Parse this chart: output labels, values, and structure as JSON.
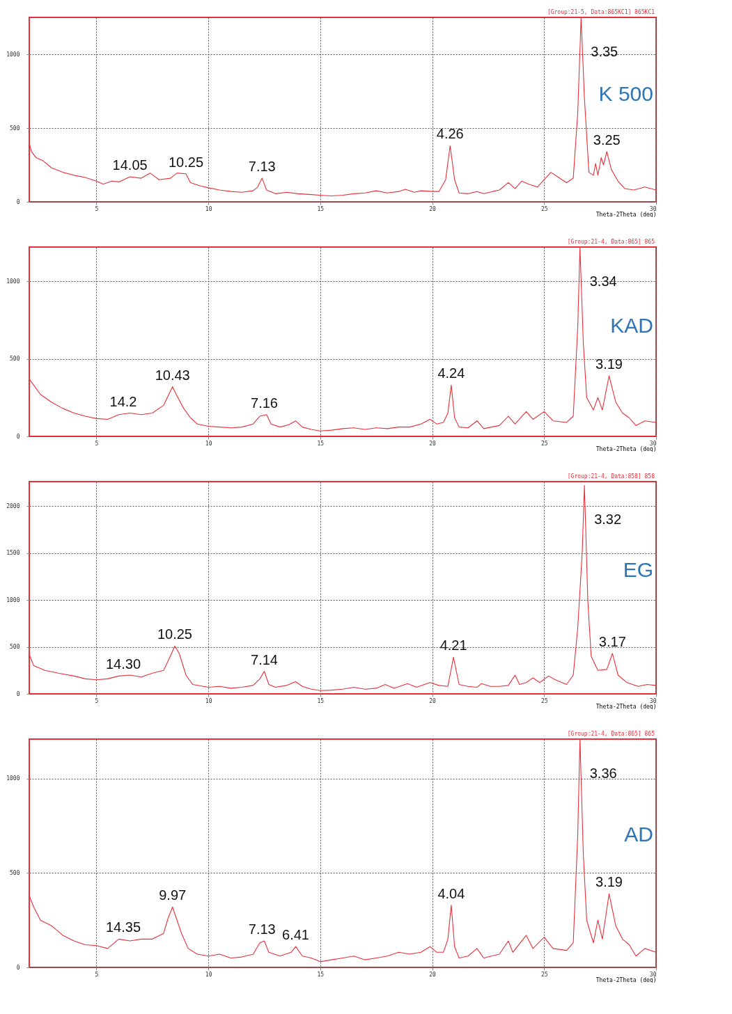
{
  "chart_data": [
    {
      "type": "line",
      "title": "K 500",
      "subtitle": "[Group:21-5, Data:865KC1] 865KC1",
      "xlabel": "Theta-2Theta (deg)",
      "xlim": [
        2,
        30
      ],
      "ylim": [
        0,
        1250
      ],
      "xticks": [
        5,
        10,
        15,
        20,
        25,
        30
      ],
      "yticks": [
        0,
        500,
        1000
      ],
      "grid": true,
      "line_style": "solid",
      "series": [
        {
          "color": "#e8303a",
          "x": [
            2,
            2.1,
            2.3,
            2.6,
            3,
            3.5,
            4,
            4.5,
            5,
            5.3,
            5.7,
            6,
            6.5,
            7,
            7.4,
            7.8,
            8.3,
            8.6,
            9,
            9.2,
            9.6,
            10,
            10.5,
            11,
            11.5,
            12,
            12.2,
            12.4,
            12.6,
            13,
            13.5,
            14,
            14.5,
            15,
            15.5,
            16,
            16.5,
            17,
            17.5,
            18,
            18.5,
            18.8,
            19.2,
            19.5,
            20,
            20.3,
            20.6,
            20.8,
            21,
            21.2,
            21.6,
            22,
            22.3,
            22.7,
            23,
            23.4,
            23.7,
            24,
            24.3,
            24.7,
            25,
            25.3,
            25.6,
            26,
            26.3,
            26.5,
            26.65,
            26.8,
            27,
            27.2,
            27.3,
            27.4,
            27.55,
            27.65,
            27.8,
            28,
            28.3,
            28.6,
            29,
            29.5,
            30
          ],
          "values": [
            400,
            340,
            300,
            280,
            230,
            200,
            180,
            165,
            140,
            120,
            140,
            135,
            170,
            160,
            195,
            150,
            160,
            195,
            190,
            130,
            110,
            95,
            80,
            70,
            65,
            75,
            100,
            160,
            80,
            55,
            65,
            55,
            50,
            45,
            40,
            45,
            55,
            60,
            75,
            60,
            70,
            85,
            65,
            75,
            70,
            70,
            150,
            380,
            150,
            60,
            55,
            70,
            55,
            70,
            80,
            130,
            90,
            140,
            120,
            100,
            150,
            200,
            170,
            130,
            160,
            600,
            1250,
            700,
            200,
            180,
            260,
            180,
            300,
            250,
            340,
            220,
            140,
            90,
            80,
            100,
            80
          ]
        }
      ],
      "annotations": [
        {
          "text": "14.05",
          "x": 6.5,
          "y": 170
        },
        {
          "text": "10.25",
          "x": 9,
          "y": 190
        },
        {
          "text": "7.13",
          "x": 12.4,
          "y": 160
        },
        {
          "text": "4.26",
          "x": 20.8,
          "y": 380
        },
        {
          "text": "3.35",
          "x": 26.65,
          "y": 1250
        },
        {
          "text": "3.25",
          "x": 27.8,
          "y": 340
        }
      ]
    },
    {
      "type": "line",
      "title": "KAD",
      "subtitle": "[Group:21-4, Data:865] 865",
      "xlabel": "Theta-2Theta (deg)",
      "xlim": [
        2,
        30
      ],
      "ylim": [
        0,
        1220
      ],
      "xticks": [
        5,
        10,
        15,
        20,
        25,
        30
      ],
      "yticks": [
        0,
        500,
        1000
      ],
      "grid": true,
      "line_style": "solid",
      "series": [
        {
          "color": "#e8303a",
          "x": [
            2,
            2.2,
            2.5,
            3,
            3.5,
            4,
            4.5,
            5,
            5.5,
            6,
            6.5,
            7,
            7.5,
            8,
            8.3,
            8.4,
            8.6,
            8.9,
            9.2,
            9.5,
            10,
            10.5,
            11,
            11.5,
            12,
            12.3,
            12.6,
            12.8,
            13.2,
            13.6,
            13.9,
            14.2,
            14.6,
            15,
            15.5,
            16,
            16.5,
            17,
            17.5,
            18,
            18.5,
            19,
            19.5,
            19.9,
            20.2,
            20.5,
            20.7,
            20.85,
            21,
            21.2,
            21.6,
            22,
            22.3,
            23,
            23.4,
            23.7,
            24.2,
            24.5,
            25,
            25.4,
            26,
            26.3,
            26.5,
            26.6,
            26.75,
            26.9,
            27.2,
            27.4,
            27.6,
            27.9,
            28.2,
            28.5,
            28.8,
            29.1,
            29.5,
            30
          ],
          "values": [
            370,
            330,
            270,
            220,
            180,
            150,
            130,
            115,
            110,
            140,
            150,
            140,
            150,
            200,
            290,
            320,
            260,
            180,
            120,
            80,
            65,
            60,
            55,
            60,
            80,
            130,
            140,
            80,
            60,
            75,
            100,
            60,
            45,
            35,
            40,
            50,
            55,
            45,
            55,
            50,
            60,
            60,
            80,
            110,
            80,
            90,
            150,
            330,
            120,
            60,
            55,
            100,
            50,
            70,
            130,
            80,
            160,
            110,
            160,
            100,
            90,
            130,
            700,
            1220,
            600,
            250,
            170,
            250,
            170,
            390,
            220,
            150,
            120,
            70,
            100,
            90
          ]
        }
      ],
      "annotations": [
        {
          "text": "14.2",
          "x": 6.2,
          "y": 150
        },
        {
          "text": "10.43",
          "x": 8.4,
          "y": 320
        },
        {
          "text": "7.16",
          "x": 12.5,
          "y": 140
        },
        {
          "text": "4.24",
          "x": 20.85,
          "y": 330
        },
        {
          "text": "3.34",
          "x": 26.6,
          "y": 1220
        },
        {
          "text": "3.19",
          "x": 27.9,
          "y": 390
        }
      ]
    },
    {
      "type": "line",
      "title": "EG",
      "subtitle": "[Group:21-4, Data:858] 858",
      "xlabel": "Theta-2Theta (deg)",
      "xlim": [
        2,
        30
      ],
      "ylim": [
        0,
        2260
      ],
      "xticks": [
        5,
        10,
        15,
        20,
        25,
        30
      ],
      "yticks": [
        0,
        500,
        1000,
        1500,
        2000
      ],
      "grid": true,
      "line_style": "solid",
      "series": [
        {
          "color": "#e8303a",
          "x": [
            2,
            2.2,
            2.7,
            3.3,
            4,
            4.5,
            5,
            5.5,
            6,
            6.5,
            7,
            7.5,
            8,
            8.3,
            8.5,
            8.7,
            9,
            9.3,
            10,
            10.5,
            11,
            11.5,
            12,
            12.3,
            12.5,
            12.7,
            13,
            13.5,
            13.9,
            14.2,
            14.6,
            15,
            15.5,
            16,
            16.5,
            17,
            17.5,
            17.9,
            18.3,
            18.9,
            19.3,
            19.9,
            20.3,
            20.7,
            20.95,
            21.2,
            21.6,
            22,
            22.2,
            22.6,
            23,
            23.4,
            23.7,
            23.9,
            24.2,
            24.5,
            24.8,
            25.2,
            25.5,
            26,
            26.3,
            26.5,
            26.7,
            26.8,
            26.95,
            27.1,
            27.4,
            27.8,
            28.05,
            28.3,
            28.7,
            29.2,
            29.6,
            30
          ],
          "values": [
            420,
            300,
            250,
            220,
            190,
            160,
            150,
            160,
            190,
            200,
            180,
            220,
            250,
            400,
            510,
            430,
            200,
            100,
            70,
            80,
            60,
            70,
            90,
            160,
            240,
            100,
            70,
            90,
            130,
            80,
            50,
            35,
            40,
            50,
            70,
            50,
            60,
            100,
            60,
            110,
            70,
            120,
            90,
            80,
            390,
            100,
            80,
            70,
            110,
            80,
            80,
            90,
            200,
            100,
            120,
            170,
            120,
            190,
            150,
            100,
            200,
            700,
            1500,
            2220,
            1000,
            400,
            250,
            260,
            430,
            200,
            120,
            80,
            100,
            90
          ]
        }
      ],
      "annotations": [
        {
          "text": "14.30",
          "x": 6.2,
          "y": 190
        },
        {
          "text": "10.25",
          "x": 8.5,
          "y": 510
        },
        {
          "text": "7.14",
          "x": 12.5,
          "y": 240
        },
        {
          "text": "4.21",
          "x": 20.95,
          "y": 390
        },
        {
          "text": "3.32",
          "x": 26.8,
          "y": 2220
        },
        {
          "text": "3.17",
          "x": 28.05,
          "y": 430
        }
      ]
    },
    {
      "type": "line",
      "title": "AD",
      "subtitle": "[Group:21-4, Data:865] 865",
      "xlabel": "Theta-2Theta (deg)",
      "xlim": [
        2,
        30
      ],
      "ylim": [
        0,
        1210
      ],
      "xticks": [
        5,
        10,
        15,
        20,
        25,
        30
      ],
      "yticks": [
        0,
        500,
        1000
      ],
      "grid": true,
      "line_style": "solid",
      "series": [
        {
          "color": "#e8303a",
          "x": [
            2,
            2.2,
            2.5,
            3,
            3.5,
            4,
            4.5,
            5,
            5.5,
            6,
            6.5,
            7,
            7.5,
            8,
            8.2,
            8.4,
            8.6,
            8.8,
            9.1,
            9.5,
            10,
            10.5,
            11,
            11.5,
            12,
            12.3,
            12.5,
            12.7,
            13.2,
            13.7,
            13.9,
            14.2,
            14.6,
            15,
            15.5,
            16,
            16.5,
            17,
            17.5,
            18,
            18.5,
            19,
            19.5,
            19.9,
            20.2,
            20.5,
            20.7,
            20.85,
            21,
            21.2,
            21.6,
            22,
            22.3,
            23,
            23.4,
            23.6,
            24.2,
            24.5,
            25,
            25.4,
            26,
            26.3,
            26.5,
            26.6,
            26.75,
            26.9,
            27.2,
            27.4,
            27.6,
            27.9,
            28.2,
            28.5,
            28.8,
            29.1,
            29.5,
            30
          ],
          "values": [
            380,
            320,
            250,
            220,
            170,
            140,
            120,
            115,
            100,
            150,
            140,
            150,
            150,
            180,
            260,
            320,
            250,
            180,
            100,
            70,
            60,
            70,
            50,
            55,
            70,
            130,
            140,
            80,
            60,
            80,
            110,
            60,
            50,
            30,
            40,
            50,
            60,
            40,
            50,
            60,
            80,
            70,
            80,
            110,
            80,
            80,
            150,
            330,
            110,
            50,
            60,
            100,
            50,
            70,
            140,
            80,
            170,
            100,
            160,
            100,
            90,
            130,
            700,
            1210,
            600,
            250,
            130,
            250,
            150,
            390,
            220,
            150,
            120,
            60,
            100,
            80
          ]
        }
      ],
      "annotations": [
        {
          "text": "14.35",
          "x": 6.2,
          "y": 150
        },
        {
          "text": "9.97",
          "x": 8.4,
          "y": 320
        },
        {
          "text": "7.13",
          "x": 12.4,
          "y": 140
        },
        {
          "text": "6.41",
          "x": 13.9,
          "y": 110
        },
        {
          "text": "4.04",
          "x": 20.85,
          "y": 330
        },
        {
          "text": "3.36",
          "x": 26.6,
          "y": 1210
        },
        {
          "text": "3.19",
          "x": 27.9,
          "y": 390
        }
      ]
    }
  ]
}
